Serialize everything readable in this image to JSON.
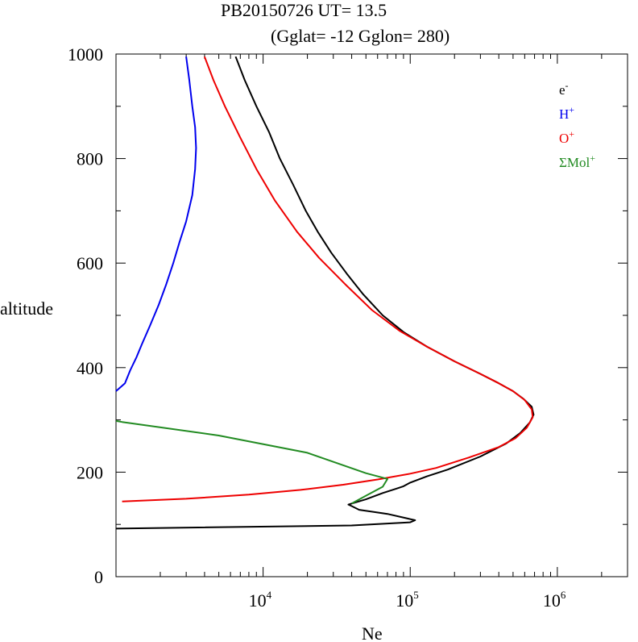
{
  "chart_data": {
    "type": "line",
    "title": {
      "line1": "PB20150726   UT=  13.5",
      "line2": "(Gglat= -12   Gglon=  280)"
    },
    "xlabel": "Ne",
    "ylabel": "altitude",
    "x_scale": "log",
    "xlim": [
      1000,
      3000000
    ],
    "ylim": [
      0,
      1000
    ],
    "x_tick_labels": [
      {
        "value": 10000,
        "base": "10",
        "exp": "4"
      },
      {
        "value": 100000,
        "base": "10",
        "exp": "5"
      },
      {
        "value": 1000000,
        "base": "10",
        "exp": "6"
      }
    ],
    "y_ticks": [
      0,
      200,
      400,
      600,
      800,
      1000
    ],
    "legend": {
      "placement": "top-right",
      "entries": [
        {
          "key": "e",
          "base": "e",
          "sup": "-",
          "color": "#000000"
        },
        {
          "key": "H",
          "base": "H",
          "sup": "+",
          "color": "#0000ee"
        },
        {
          "key": "O",
          "base": "O",
          "sup": "+",
          "color": "#ee0000"
        },
        {
          "key": "Mol",
          "base": "ΣMol",
          "sup": "+",
          "color": "#228b22"
        }
      ]
    },
    "series": [
      {
        "key": "e",
        "color": "#000000",
        "points": [
          [
            1000,
            92
          ],
          [
            40000,
            98
          ],
          [
            100000,
            104
          ],
          [
            108000,
            108
          ],
          [
            70000,
            120
          ],
          [
            45000,
            128
          ],
          [
            40000,
            135
          ],
          [
            38000,
            138
          ],
          [
            50000,
            148
          ],
          [
            65000,
            160
          ],
          [
            80000,
            168
          ],
          [
            90000,
            173
          ],
          [
            100000,
            180
          ],
          [
            130000,
            192
          ],
          [
            180000,
            205
          ],
          [
            300000,
            230
          ],
          [
            450000,
            255
          ],
          [
            560000,
            275
          ],
          [
            650000,
            295
          ],
          [
            690000,
            310
          ],
          [
            670000,
            325
          ],
          [
            590000,
            340
          ],
          [
            500000,
            355
          ],
          [
            400000,
            370
          ],
          [
            300000,
            388
          ],
          [
            200000,
            412
          ],
          [
            130000,
            440
          ],
          [
            90000,
            468
          ],
          [
            65000,
            500
          ],
          [
            48000,
            540
          ],
          [
            37000,
            580
          ],
          [
            29000,
            620
          ],
          [
            23500,
            660
          ],
          [
            19500,
            700
          ],
          [
            16000,
            750
          ],
          [
            13000,
            800
          ],
          [
            11000,
            850
          ],
          [
            9000,
            900
          ],
          [
            7500,
            950
          ],
          [
            6500,
            995
          ]
        ]
      },
      {
        "key": "H",
        "color": "#0000ee",
        "points": [
          [
            1000,
            355
          ],
          [
            1150,
            370
          ],
          [
            1250,
            395
          ],
          [
            1380,
            420
          ],
          [
            1500,
            445
          ],
          [
            1700,
            480
          ],
          [
            1950,
            520
          ],
          [
            2200,
            560
          ],
          [
            2450,
            600
          ],
          [
            2700,
            640
          ],
          [
            3000,
            680
          ],
          [
            3300,
            730
          ],
          [
            3450,
            780
          ],
          [
            3500,
            820
          ],
          [
            3450,
            860
          ],
          [
            3300,
            900
          ],
          [
            3150,
            950
          ],
          [
            3000,
            995
          ]
        ]
      },
      {
        "key": "O",
        "color": "#ee0000",
        "points": [
          [
            1100,
            144
          ],
          [
            3000,
            149
          ],
          [
            8000,
            157
          ],
          [
            18000,
            166
          ],
          [
            35000,
            176
          ],
          [
            60000,
            186
          ],
          [
            100000,
            197
          ],
          [
            150000,
            208
          ],
          [
            250000,
            228
          ],
          [
            400000,
            248
          ],
          [
            520000,
            265
          ],
          [
            620000,
            285
          ],
          [
            680000,
            305
          ],
          [
            670000,
            320
          ],
          [
            600000,
            338
          ],
          [
            500000,
            355
          ],
          [
            400000,
            370
          ],
          [
            300000,
            388
          ],
          [
            200000,
            412
          ],
          [
            130000,
            440
          ],
          [
            85000,
            470
          ],
          [
            55000,
            510
          ],
          [
            36000,
            560
          ],
          [
            24000,
            610
          ],
          [
            17000,
            660
          ],
          [
            12000,
            720
          ],
          [
            9000,
            780
          ],
          [
            7000,
            840
          ],
          [
            5500,
            900
          ],
          [
            4600,
            950
          ],
          [
            4000,
            995
          ]
        ]
      },
      {
        "key": "Mol",
        "color": "#228b22",
        "points": [
          [
            1000,
            298
          ],
          [
            1100,
            296
          ],
          [
            5000,
            270
          ],
          [
            20000,
            237
          ],
          [
            50000,
            198
          ],
          [
            70000,
            187
          ],
          [
            65000,
            172
          ],
          [
            50000,
            155
          ],
          [
            40000,
            140
          ]
        ]
      }
    ]
  }
}
